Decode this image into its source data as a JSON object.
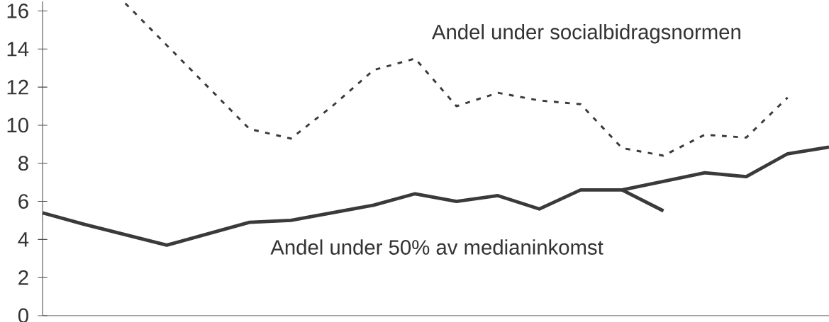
{
  "chart_data": {
    "type": "line",
    "marker": "none",
    "categories": [
      null,
      null,
      null,
      null,
      null,
      null,
      null,
      null,
      null,
      null,
      null,
      null,
      null,
      null,
      null,
      null,
      null,
      null,
      null,
      null
    ],
    "ylim": [
      0,
      16.5
    ],
    "yticks": [
      0,
      2,
      4,
      6,
      8,
      10,
      12,
      14,
      16
    ],
    "series": [
      {
        "name": "Andel under 50% av medianinkomst",
        "color": "#3a3a3a",
        "line_style": "solid",
        "values": [
          5.4,
          4.8,
          4.25,
          3.7,
          4.3,
          4.9,
          5.0,
          5.4,
          5.8,
          6.4,
          6.0,
          6.3,
          5.6,
          6.6,
          6.6,
          7.05,
          7.5,
          7.3,
          8.5,
          8.85
        ]
      },
      {
        "color": "#3a3a3a",
        "line_style": "solid",
        "values": [
          null,
          null,
          null,
          null,
          null,
          null,
          null,
          null,
          null,
          null,
          null,
          null,
          null,
          null,
          6.6,
          5.5,
          null,
          null,
          null,
          null
        ]
      },
      {
        "name": "Andel under socialbidragsnormen",
        "color": "#3a3a3a",
        "line_style": "dashed",
        "values": [
          null,
          null,
          16.4,
          14.2,
          12.0,
          9.8,
          9.3,
          11.0,
          12.9,
          13.5,
          11.0,
          11.7,
          11.3,
          11.1,
          8.8,
          8.4,
          9.5,
          9.35,
          11.45,
          null
        ]
      }
    ]
  }
}
